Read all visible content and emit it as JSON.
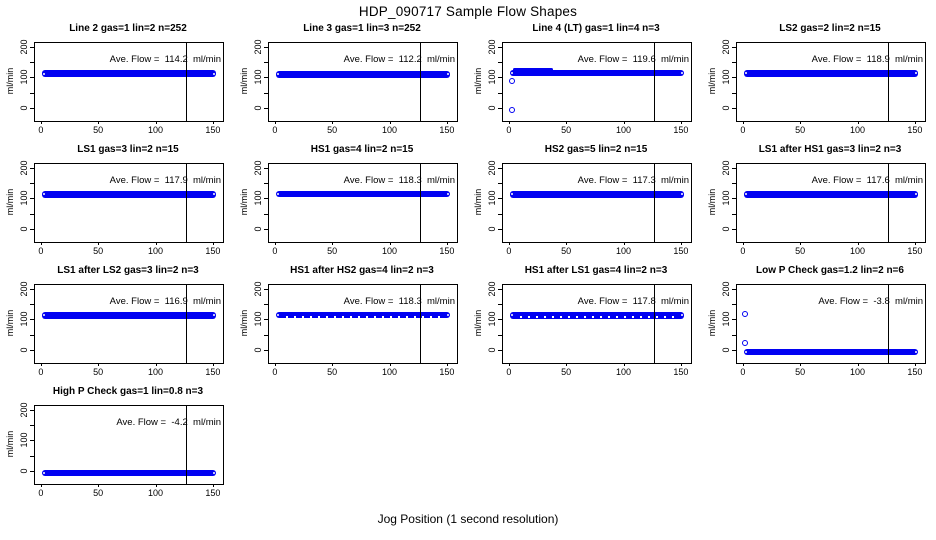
{
  "window": {
    "title": "HDP_090717  Sample Flow Shapes"
  },
  "chart_data": {
    "type": "scatter",
    "layout": "4x4-grid",
    "title": "HDP_090717  Sample Flow Shapes",
    "xlabel": "Jog Position (1 second resolution)",
    "ylabel": "ml/min",
    "x_ticks": [
      0,
      50,
      100,
      150
    ],
    "y_ticks_labeled": [
      0,
      100,
      200
    ],
    "y_ticks_minor": [
      50,
      150
    ],
    "xlim": [
      -6,
      158
    ],
    "ylim": [
      -40,
      216
    ],
    "vline_x": 126,
    "grid": "off",
    "point_color": "#0101f2",
    "axis_color": "#000000",
    "ave_label_prefix": "Ave. Flow = ",
    "ave_unit": "ml/min",
    "subplots": [
      {
        "title": "Line 2 gas=1 lin=2 n=252",
        "ave_flow": "114.2",
        "band": {
          "x_min": 0,
          "x_max": 152,
          "y_min": 104,
          "y_max": 126
        },
        "outliers": [],
        "speckled": false,
        "left_scatter": null
      },
      {
        "title": "Line 3 gas=1 lin=3 n=252",
        "ave_flow": "112.2",
        "band": {
          "x_min": 0,
          "x_max": 152,
          "y_min": 102,
          "y_max": 124
        },
        "outliers": [],
        "speckled": false,
        "left_scatter": null
      },
      {
        "title": "Line 4 (LT) gas=1 lin=4 n=3",
        "ave_flow": "119.6",
        "band": {
          "x_min": 0,
          "x_max": 152,
          "y_min": 107,
          "y_max": 129
        },
        "outliers": [
          [
            2,
            90
          ],
          [
            2,
            -5
          ]
        ],
        "speckled": false,
        "left_scatter": {
          "x_min": 3,
          "x_max": 38,
          "y_min": 124,
          "y_max": 134
        }
      },
      {
        "title": "LS2 gas=2 lin=2 n=15",
        "ave_flow": "118.9",
        "band": {
          "x_min": 0,
          "x_max": 152,
          "y_min": 106,
          "y_max": 128
        },
        "outliers": [],
        "speckled": false,
        "left_scatter": null
      },
      {
        "title": "LS1 gas=3 lin=2 n=15",
        "ave_flow": "117.9",
        "band": {
          "x_min": 0,
          "x_max": 152,
          "y_min": 106,
          "y_max": 128
        },
        "outliers": [],
        "speckled": false,
        "left_scatter": null
      },
      {
        "title": "HS1 gas=4 lin=2 n=15",
        "ave_flow": "118.3",
        "band": {
          "x_min": 0,
          "x_max": 152,
          "y_min": 107,
          "y_max": 129
        },
        "outliers": [],
        "speckled": false,
        "left_scatter": null
      },
      {
        "title": "HS2 gas=5 lin=2 n=15",
        "ave_flow": "117.3",
        "band": {
          "x_min": 0,
          "x_max": 152,
          "y_min": 106,
          "y_max": 128
        },
        "outliers": [],
        "speckled": false,
        "left_scatter": null
      },
      {
        "title": "LS1 after HS1 gas=3 lin=2 n=3",
        "ave_flow": "117.6",
        "band": {
          "x_min": 0,
          "x_max": 152,
          "y_min": 106,
          "y_max": 128
        },
        "outliers": [],
        "speckled": false,
        "left_scatter": null
      },
      {
        "title": "LS1 after LS2 gas=3 lin=2 n=3",
        "ave_flow": "116.9",
        "band": {
          "x_min": 0,
          "x_max": 152,
          "y_min": 105,
          "y_max": 127
        },
        "outliers": [],
        "speckled": false,
        "left_scatter": null
      },
      {
        "title": "HS1 after HS2 gas=4 lin=2 n=3",
        "ave_flow": "118.3",
        "band": {
          "x_min": 0,
          "x_max": 152,
          "y_min": 107,
          "y_max": 129
        },
        "outliers": [],
        "speckled": true,
        "left_scatter": null
      },
      {
        "title": "HS1 after LS1 gas=4 lin=2 n=3",
        "ave_flow": "117.8",
        "band": {
          "x_min": 0,
          "x_max": 152,
          "y_min": 106,
          "y_max": 128
        },
        "outliers": [],
        "speckled": true,
        "left_scatter": null
      },
      {
        "title": "Low P Check gas=1.2 lin=2 n=6",
        "ave_flow": "-3.8",
        "band": {
          "x_min": 0,
          "x_max": 152,
          "y_min": -13,
          "y_max": 7
        },
        "outliers": [
          [
            1.5,
            118
          ],
          [
            1.5,
            25
          ]
        ],
        "speckled": false,
        "left_scatter": null
      },
      {
        "title": "High P Check gas=1 lin=0.8 n=3",
        "ave_flow": "-4.2",
        "band": {
          "x_min": 0,
          "x_max": 152,
          "y_min": -13,
          "y_max": 7
        },
        "outliers": [],
        "speckled": false,
        "left_scatter": null
      }
    ]
  }
}
